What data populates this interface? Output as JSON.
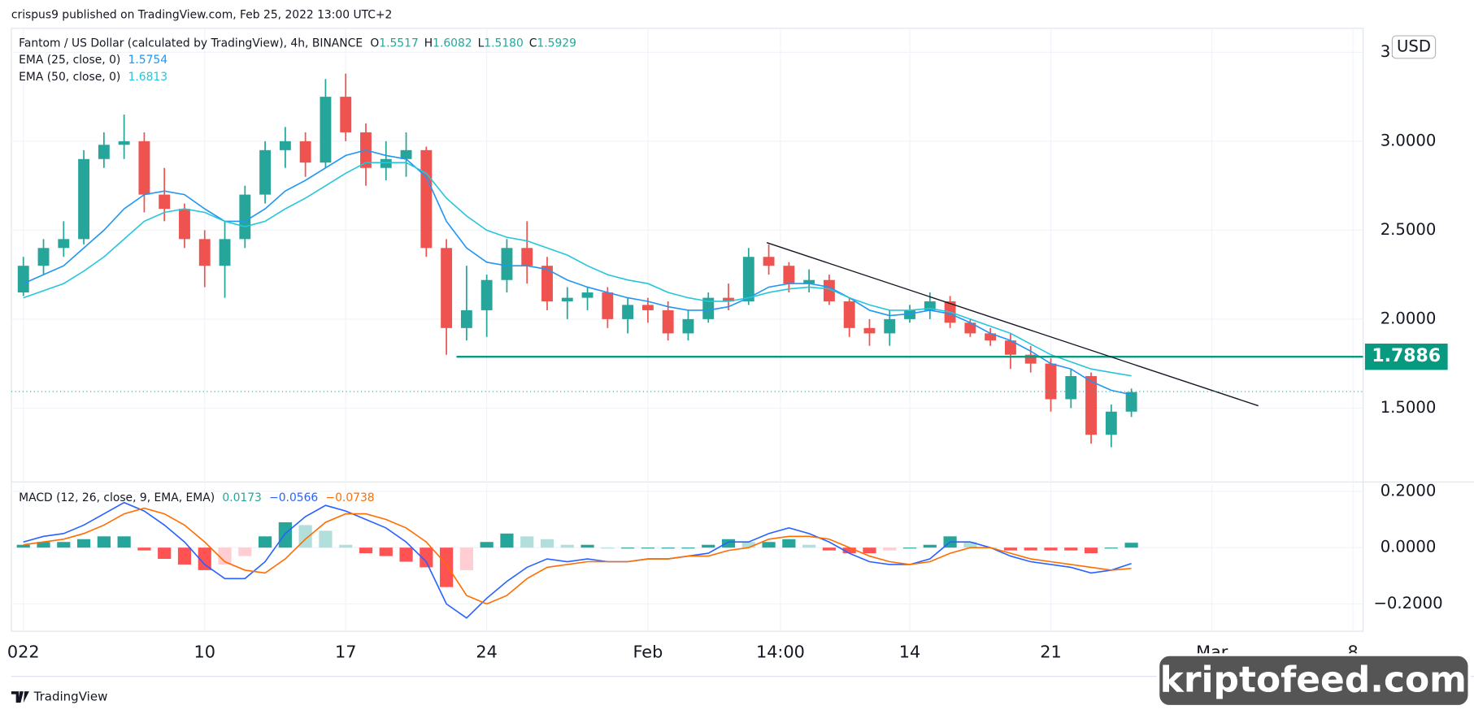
{
  "header": {
    "published": "crispus9 published on TradingView.com, Feb 25, 2022 13:00 UTC+2"
  },
  "footer": {
    "brand": "TradingView",
    "watermark": "kriptofeed.com"
  },
  "chart_data": [
    {
      "type": "candlestick",
      "title": "Fantom / US Dollar (calculated by TradingView), 4h, BINANCE",
      "ohlc_labels": [
        {
          "key": "O",
          "label": "1.5517"
        },
        {
          "key": "H",
          "label": "1.6082"
        },
        {
          "key": "L",
          "label": "1.5180"
        },
        {
          "key": "C",
          "label": "1.5929"
        }
      ],
      "axis_label": "USD",
      "up_color": "#26a69a",
      "down_color": "#ef5350",
      "x": [
        0,
        1,
        2,
        3,
        4,
        5,
        6,
        7,
        8,
        9,
        10,
        11,
        12,
        13,
        14,
        15,
        16,
        17,
        18,
        19,
        20,
        21,
        22,
        23,
        24,
        25,
        26,
        27,
        28,
        29,
        30,
        31,
        32,
        33,
        34,
        35,
        36,
        37,
        38,
        39,
        40,
        41,
        42,
        43,
        44,
        45,
        46,
        47,
        48,
        49,
        50,
        51,
        52,
        53,
        54,
        55
      ],
      "open": [
        2.15,
        2.3,
        2.4,
        2.45,
        2.9,
        2.98,
        3.0,
        2.7,
        2.62,
        2.45,
        2.3,
        2.45,
        2.7,
        2.95,
        3.0,
        2.88,
        3.25,
        3.05,
        2.85,
        2.9,
        2.95,
        2.4,
        1.95,
        2.05,
        2.22,
        2.4,
        2.3,
        2.1,
        2.12,
        2.15,
        2.0,
        2.08,
        2.05,
        1.92,
        2.0,
        2.12,
        2.1,
        2.35,
        2.3,
        2.2,
        2.22,
        2.1,
        1.95,
        1.92,
        2.0,
        2.05,
        2.1,
        1.98,
        1.92,
        1.88,
        1.8,
        1.75,
        1.55,
        1.68,
        1.35,
        1.48
      ],
      "high": [
        2.35,
        2.45,
        2.55,
        2.95,
        3.05,
        3.15,
        3.05,
        2.85,
        2.65,
        2.5,
        2.55,
        2.75,
        3.0,
        3.08,
        3.05,
        3.35,
        3.38,
        3.1,
        3.0,
        3.05,
        2.97,
        2.45,
        2.3,
        2.25,
        2.45,
        2.55,
        2.35,
        2.18,
        2.18,
        2.18,
        2.12,
        2.12,
        2.1,
        2.05,
        2.15,
        2.2,
        2.4,
        2.42,
        2.32,
        2.28,
        2.25,
        2.12,
        2.0,
        2.05,
        2.08,
        2.15,
        2.13,
        2.0,
        1.95,
        1.92,
        1.85,
        1.78,
        1.72,
        1.7,
        1.52,
        1.61
      ],
      "low": [
        2.13,
        2.25,
        2.35,
        2.42,
        2.85,
        2.9,
        2.6,
        2.55,
        2.4,
        2.18,
        2.12,
        2.4,
        2.65,
        2.85,
        2.8,
        2.85,
        3.0,
        2.75,
        2.78,
        2.8,
        2.35,
        1.8,
        1.88,
        1.9,
        2.15,
        2.2,
        2.05,
        2.0,
        2.05,
        1.95,
        1.92,
        1.98,
        1.88,
        1.88,
        1.98,
        2.05,
        2.08,
        2.25,
        2.15,
        2.15,
        2.08,
        1.9,
        1.85,
        1.85,
        1.98,
        2.0,
        1.95,
        1.9,
        1.85,
        1.72,
        1.7,
        1.48,
        1.5,
        1.3,
        1.28,
        1.45
      ],
      "close": [
        2.3,
        2.4,
        2.45,
        2.9,
        2.98,
        3.0,
        2.7,
        2.62,
        2.45,
        2.3,
        2.45,
        2.7,
        2.95,
        3.0,
        2.88,
        3.25,
        3.05,
        2.85,
        2.9,
        2.95,
        2.4,
        1.95,
        2.05,
        2.22,
        2.4,
        2.3,
        2.1,
        2.12,
        2.15,
        2.0,
        2.08,
        2.05,
        1.92,
        2.0,
        2.12,
        2.1,
        2.35,
        2.3,
        2.2,
        2.22,
        2.1,
        1.95,
        1.92,
        2.0,
        2.05,
        2.1,
        1.98,
        1.92,
        1.88,
        1.8,
        1.75,
        1.55,
        1.68,
        1.35,
        1.48,
        1.59
      ],
      "series": [
        {
          "name": "EMA (25, close, 0)",
          "last_label": "1.5754",
          "color": "#2196f3",
          "values": [
            2.2,
            2.25,
            2.3,
            2.4,
            2.5,
            2.62,
            2.7,
            2.72,
            2.7,
            2.62,
            2.55,
            2.55,
            2.62,
            2.72,
            2.78,
            2.85,
            2.92,
            2.95,
            2.92,
            2.9,
            2.8,
            2.55,
            2.4,
            2.32,
            2.3,
            2.3,
            2.28,
            2.22,
            2.18,
            2.15,
            2.12,
            2.1,
            2.07,
            2.05,
            2.05,
            2.07,
            2.12,
            2.18,
            2.2,
            2.2,
            2.18,
            2.12,
            2.05,
            2.02,
            2.03,
            2.05,
            2.03,
            1.98,
            1.92,
            1.88,
            1.82,
            1.75,
            1.72,
            1.65,
            1.6,
            1.5754
          ]
        },
        {
          "name": "EMA (50, close, 0)",
          "last_label": "1.6813",
          "color": "#26c6da",
          "values": [
            2.12,
            2.16,
            2.2,
            2.27,
            2.35,
            2.45,
            2.55,
            2.6,
            2.62,
            2.6,
            2.55,
            2.52,
            2.55,
            2.62,
            2.68,
            2.75,
            2.82,
            2.88,
            2.88,
            2.88,
            2.82,
            2.68,
            2.58,
            2.5,
            2.46,
            2.44,
            2.4,
            2.36,
            2.3,
            2.25,
            2.22,
            2.2,
            2.15,
            2.12,
            2.1,
            2.1,
            2.12,
            2.15,
            2.17,
            2.18,
            2.17,
            2.12,
            2.08,
            2.05,
            2.05,
            2.06,
            2.04,
            2.0,
            1.96,
            1.92,
            1.86,
            1.8,
            1.76,
            1.72,
            1.7,
            1.6813
          ]
        }
      ],
      "hline": {
        "value": 1.7886,
        "label": "1.7886",
        "from": 21.5,
        "color": "#089981"
      },
      "trendline": {
        "x": [
          36.9,
          61.3
        ],
        "y": [
          2.43,
          1.513
        ],
        "color": "#131722"
      },
      "last_price": 1.5929,
      "xlim": [
        -0.6,
        66.5
      ],
      "xticks": [
        {
          "value": 0,
          "label": "022"
        },
        {
          "value": 9,
          "label": "10"
        },
        {
          "value": 16,
          "label": "17"
        },
        {
          "value": 23,
          "label": "24"
        },
        {
          "value": 31,
          "label": "Feb"
        },
        {
          "value": 37.58,
          "label": "14:00"
        },
        {
          "value": 44,
          "label": "14"
        },
        {
          "value": 51,
          "label": "21"
        },
        {
          "value": 59,
          "label": "Mar"
        },
        {
          "value": 66,
          "label": "8"
        }
      ],
      "ylim": [
        1.085,
        3.635
      ],
      "yticks": [
        {
          "value": 1.5,
          "label": "1.5000"
        },
        {
          "value": 2.0,
          "label": "2.0000"
        },
        {
          "value": 2.5,
          "label": "2.5000"
        },
        {
          "value": 3.0,
          "label": "3.0000"
        },
        {
          "value": 3.5,
          "label": "3.5000"
        }
      ]
    },
    {
      "type": "macd",
      "title": "MACD (12, 26, close, 9, EMA, EMA)",
      "series": [
        {
          "name": "Histogram",
          "last_label": "0.0173",
          "color": "#26a69a",
          "colors": [
            "#26a69a",
            "#b2dfdb",
            "#ffcdd2",
            "#ff5252"
          ],
          "values": [
            0.01,
            0.02,
            0.02,
            0.03,
            0.04,
            0.04,
            -0.01,
            -0.04,
            -0.06,
            -0.08,
            -0.06,
            -0.03,
            0.04,
            0.09,
            0.08,
            0.06,
            0.01,
            -0.02,
            -0.03,
            -0.05,
            -0.07,
            -0.14,
            -0.08,
            0.02,
            0.05,
            0.04,
            0.03,
            0.01,
            0.01,
            0,
            0,
            0,
            0,
            0,
            0.01,
            0.03,
            0.02,
            0.02,
            0.03,
            0.01,
            -0.01,
            -0.02,
            -0.02,
            -0.01,
            0,
            0.01,
            0.04,
            0.02,
            0,
            -0.01,
            -0.01,
            -0.01,
            -0.01,
            -0.02,
            0,
            0.0173
          ]
        },
        {
          "name": "MACD",
          "last_label": "−0.0566",
          "color": "#2962ff",
          "values": [
            0.02,
            0.04,
            0.05,
            0.08,
            0.12,
            0.16,
            0.13,
            0.08,
            0.02,
            -0.06,
            -0.11,
            -0.11,
            -0.05,
            0.05,
            0.11,
            0.15,
            0.13,
            0.1,
            0.07,
            0.02,
            -0.05,
            -0.2,
            -0.25,
            -0.18,
            -0.12,
            -0.07,
            -0.04,
            -0.05,
            -0.04,
            -0.05,
            -0.05,
            -0.04,
            -0.04,
            -0.03,
            -0.02,
            0.02,
            0.02,
            0.05,
            0.07,
            0.05,
            0.02,
            -0.02,
            -0.05,
            -0.06,
            -0.06,
            -0.04,
            0.02,
            0.02,
            0,
            -0.03,
            -0.05,
            -0.06,
            -0.07,
            -0.09,
            -0.08,
            -0.0566
          ]
        },
        {
          "name": "Signal",
          "last_label": "−0.0738",
          "color": "#ff6d00",
          "values": [
            0.01,
            0.02,
            0.03,
            0.05,
            0.08,
            0.12,
            0.14,
            0.12,
            0.08,
            0.02,
            -0.05,
            -0.08,
            -0.09,
            -0.04,
            0.03,
            0.09,
            0.12,
            0.12,
            0.1,
            0.07,
            0.02,
            -0.06,
            -0.17,
            -0.2,
            -0.17,
            -0.11,
            -0.07,
            -0.06,
            -0.05,
            -0.05,
            -0.05,
            -0.04,
            -0.04,
            -0.03,
            -0.03,
            -0.01,
            0,
            0.03,
            0.04,
            0.04,
            0.03,
            0,
            -0.03,
            -0.05,
            -0.06,
            -0.05,
            -0.02,
            0,
            0,
            -0.02,
            -0.04,
            -0.05,
            -0.06,
            -0.07,
            -0.08,
            -0.0738
          ]
        }
      ],
      "ylim": [
        -0.297,
        0.23
      ],
      "yticks": [
        {
          "value": 0.2,
          "label": "0.2000"
        },
        {
          "value": 0,
          "label": "0.0000"
        },
        {
          "value": -0.2,
          "label": "−0.2000"
        }
      ]
    }
  ]
}
